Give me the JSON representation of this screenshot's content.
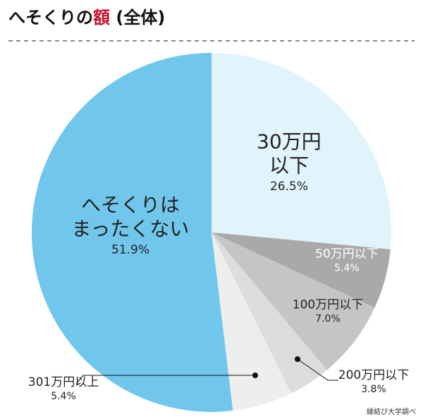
{
  "chart_data": {
    "type": "pie",
    "title": [
      {
        "text": "へそくりの"
      },
      {
        "text": "額",
        "color": "#c8102e"
      },
      {
        "text": " (全体)"
      }
    ],
    "categories": [
      [
        "30万円",
        "以下"
      ],
      [
        "50万円以下"
      ],
      [
        "100万円以下"
      ],
      [
        "200万円以下"
      ],
      [
        "301万円以上"
      ],
      [
        "へそくりは",
        "まったくない"
      ]
    ],
    "values": [
      26.5,
      5.4,
      7.0,
      3.8,
      5.4,
      51.9
    ],
    "value_labels": [
      "26.5%",
      "5.4%",
      "7.0%",
      "3.8%",
      "5.4%",
      "51.9%"
    ],
    "colors": [
      "#e1f3fb",
      "#a9a9aa",
      "#c5c5c7",
      "#dcdcde",
      "#eeefec",
      "#71c7eb"
    ],
    "source": "縁結び大学調べ"
  }
}
